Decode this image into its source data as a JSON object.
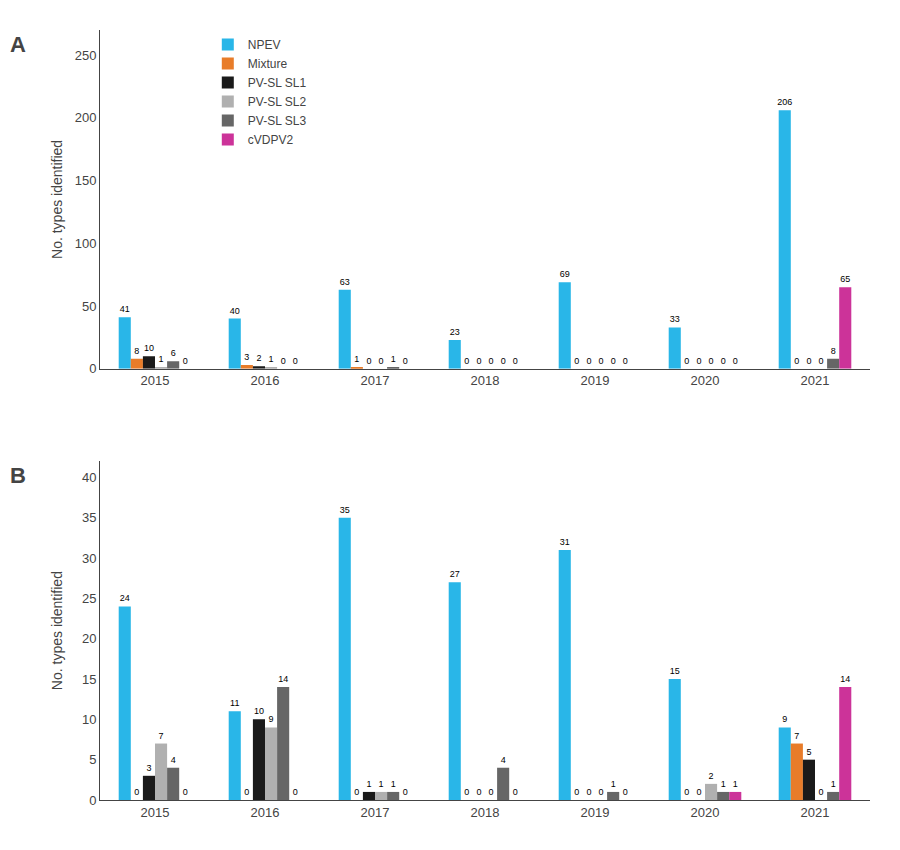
{
  "chart_data": [
    {
      "type": "bar",
      "title": "A",
      "categories": [
        "2015",
        "2016",
        "2017",
        "2018",
        "2019",
        "2020",
        "2021"
      ],
      "series": [
        {
          "name": "NPEV",
          "color": "#29B6E8",
          "values": [
            41,
            40,
            63,
            23,
            69,
            33,
            206
          ]
        },
        {
          "name": "Mixture",
          "color": "#E87C29",
          "values": [
            8,
            3,
            1,
            0,
            0,
            0,
            0
          ]
        },
        {
          "name": "PV-SL SL1",
          "color": "#1a1a1a",
          "values": [
            10,
            2,
            0,
            0,
            0,
            0,
            0
          ]
        },
        {
          "name": "PV-SL SL2",
          "color": "#b0b0b0",
          "values": [
            1,
            1,
            0,
            0,
            0,
            0,
            0
          ]
        },
        {
          "name": "PV-SL SL3",
          "color": "#666666",
          "values": [
            6,
            0,
            1,
            0,
            0,
            0,
            8
          ]
        },
        {
          "name": "cVDPV2",
          "color": "#CC3399",
          "values": [
            0,
            0,
            0,
            0,
            0,
            0,
            65
          ]
        }
      ],
      "ylabel": "No. types identified",
      "ylim": [
        0,
        270
      ],
      "yticks": [
        0,
        50,
        100,
        150,
        200,
        250
      ],
      "grid": false,
      "legend": "upper left",
      "data_labels": true
    },
    {
      "type": "bar",
      "title": "B",
      "categories": [
        "2015",
        "2016",
        "2017",
        "2018",
        "2019",
        "2020",
        "2021"
      ],
      "series": [
        {
          "name": "NPEV",
          "color": "#29B6E8",
          "values": [
            24,
            11,
            35,
            27,
            31,
            15,
            9
          ]
        },
        {
          "name": "Mixture",
          "color": "#E87C29",
          "values": [
            0,
            0,
            0,
            0,
            0,
            0,
            7
          ]
        },
        {
          "name": "PV-SL SL1",
          "color": "#1a1a1a",
          "values": [
            3,
            10,
            1,
            0,
            0,
            0,
            5
          ]
        },
        {
          "name": "PV-SL SL2",
          "color": "#b0b0b0",
          "values": [
            7,
            9,
            1,
            0,
            0,
            2,
            0
          ]
        },
        {
          "name": "PV-SL SL3",
          "color": "#666666",
          "values": [
            4,
            14,
            1,
            4,
            1,
            1,
            1
          ]
        },
        {
          "name": "cVDPV2",
          "color": "#CC3399",
          "values": [
            0,
            0,
            0,
            0,
            0,
            1,
            14
          ]
        }
      ],
      "ylabel": "No. types identified",
      "ylim": [
        0,
        42
      ],
      "yticks": [
        0,
        5,
        10,
        15,
        20,
        25,
        30,
        35,
        40
      ],
      "grid": false,
      "data_labels": true
    }
  ]
}
